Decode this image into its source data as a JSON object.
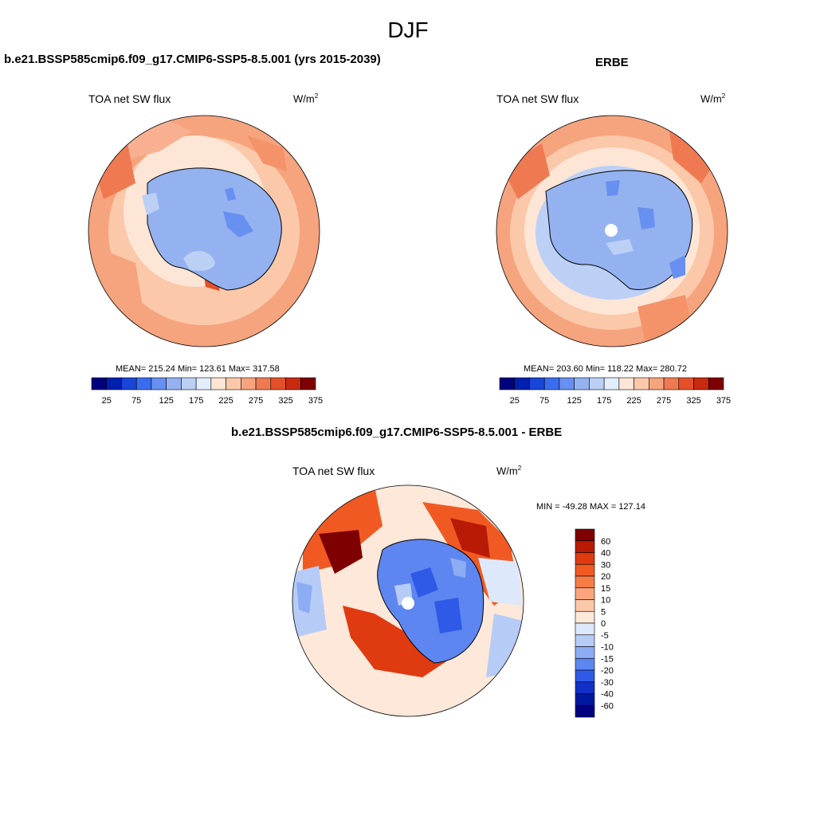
{
  "main_title": "DJF",
  "panels": [
    {
      "title": "b.e21.BSSP585cmip6.f09_g17.CMIP6-SSP5-8.5.001 (yrs 2015-2039)",
      "variable": "TOA net SW flux",
      "units_base": "W/m",
      "units_exp": "2",
      "stats": "MEAN= 215.24  Min= 123.61  Max= 317.58"
    },
    {
      "title": "ERBE",
      "variable": "TOA net SW flux",
      "units_base": "W/m",
      "units_exp": "2",
      "stats": "MEAN= 203.60  Min= 118.22  Max= 280.72"
    },
    {
      "title": "b.e21.BSSP585cmip6.f09_g17.CMIP6-SSP5-8.5.001 - ERBE",
      "variable": "TOA net SW flux",
      "units_base": "W/m",
      "units_exp": "2",
      "stats": "MIN = -49.28 MAX = 127.14"
    }
  ],
  "abs_colorbar": {
    "colors": [
      "#00007f",
      "#0020b0",
      "#1846d8",
      "#3a6cf0",
      "#6790f0",
      "#94b2f0",
      "#bcd0f6",
      "#e2eefc",
      "#fde6d6",
      "#fbc8aa",
      "#f6a47e",
      "#ef7a52",
      "#e3502a",
      "#c82a10",
      "#7e0000"
    ],
    "tick_labels": [
      "25",
      "75",
      "125",
      "175",
      "225",
      "275",
      "325",
      "375"
    ]
  },
  "diff_colorbar": {
    "colors": [
      "#7e0000",
      "#b81a06",
      "#e03a10",
      "#f05a22",
      "#f57c46",
      "#f9a47c",
      "#fcc8aa",
      "#fde8da",
      "#dde8fb",
      "#b6ccf7",
      "#8cacf4",
      "#5e86f0",
      "#2f5ae8",
      "#1030c8",
      "#0018a0",
      "#000080"
    ],
    "tick_labels": [
      "60",
      "40",
      "30",
      "20",
      "15",
      "10",
      "5",
      "0",
      "-5",
      "-10",
      "-15",
      "-20",
      "-30",
      "-40",
      "-60"
    ]
  }
}
